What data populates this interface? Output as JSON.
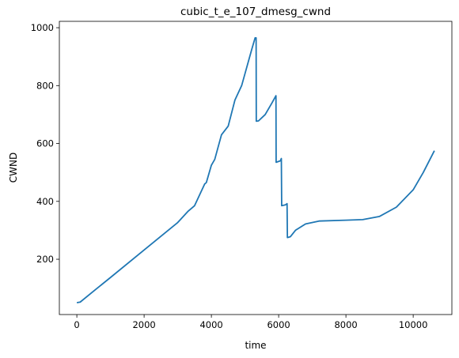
{
  "chart_data": {
    "type": "line",
    "title": "cubic_t_e_107_dmesg_cwnd",
    "x_label": "time",
    "y_label": "CWND",
    "x": [
      0,
      100,
      500,
      1000,
      2000,
      3000,
      3300,
      3500,
      3600,
      3800,
      3850,
      4000,
      4100,
      4300,
      4400,
      4500,
      4700,
      4900,
      5200,
      5300,
      5330,
      5335,
      5400,
      5600,
      5800,
      5920,
      5925,
      6050,
      6080,
      6090,
      6200,
      6250,
      6260,
      6350,
      6500,
      6800,
      7200,
      8000,
      8500,
      9000,
      9500,
      10000,
      10300,
      10630
    ],
    "series": [
      {
        "name": "cwnd",
        "color": "#1f77b4",
        "values": [
          50,
          52,
          90,
          137,
          232,
          327,
          365,
          385,
          410,
          460,
          465,
          525,
          545,
          630,
          645,
          660,
          750,
          800,
          925,
          965,
          965,
          677,
          678,
          700,
          740,
          765,
          535,
          540,
          548,
          385,
          388,
          392,
          275,
          278,
          300,
          322,
          332,
          335,
          337,
          348,
          380,
          440,
          500,
          575
        ]
      }
    ],
    "xlim": [
      -520,
      11150
    ],
    "ylim": [
      9,
      1022
    ],
    "xticks": [
      0,
      2000,
      4000,
      6000,
      8000,
      10000
    ],
    "yticks": [
      200,
      400,
      600,
      800,
      1000
    ]
  }
}
